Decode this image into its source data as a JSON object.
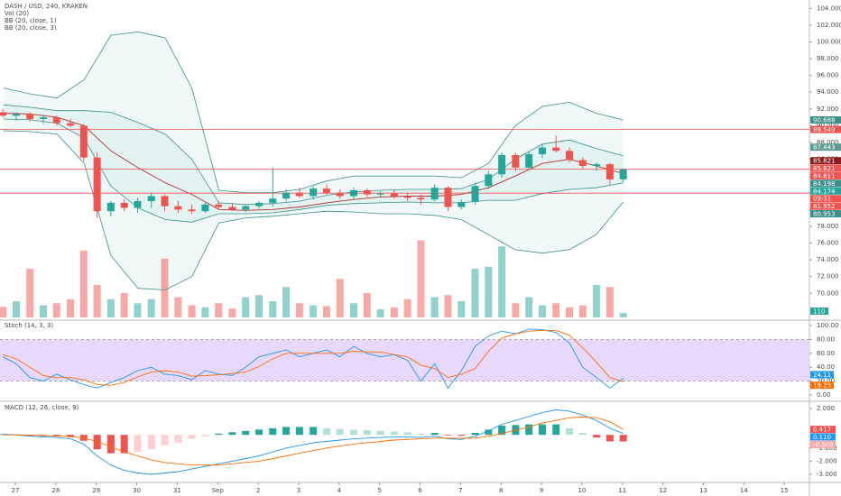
{
  "chart_data": [
    {
      "type": "candlestick",
      "title": "DASH / USD, 240, KRAKEN",
      "indicators": [
        "Vol (20)",
        "BB (20, close, 1)",
        "BB (20, close, 3)"
      ],
      "x": [
        -0.31,
        0.02,
        0.36,
        0.69,
        1.02,
        1.36,
        1.69,
        2.02,
        2.36,
        2.69,
        3.02,
        3.36,
        3.69,
        4.02,
        4.36,
        4.69,
        5.02,
        5.36,
        5.69,
        6.02,
        6.36,
        6.69,
        7.02,
        7.36,
        7.69,
        8.02,
        8.36,
        8.69,
        9.02,
        9.36,
        9.69,
        10.02,
        10.36,
        10.69,
        11.02,
        11.36,
        11.69,
        12.02,
        12.36,
        12.69,
        13.02,
        13.36,
        13.69,
        14.02,
        14.36,
        14.69,
        15.02
      ],
      "open": [
        91.6,
        91.2,
        91.4,
        90.8,
        91.0,
        90.3,
        90.0,
        86.2,
        79.8,
        80.8,
        80.2,
        81.0,
        81.6,
        80.4,
        80.0,
        79.8,
        80.6,
        80.3,
        80.0,
        80.4,
        80.8,
        81.3,
        82.0,
        81.6,
        82.5,
        82.0,
        81.6,
        82.3,
        81.8,
        81.9,
        81.6,
        81.4,
        81.2,
        82.6,
        80.3,
        80.9,
        82.8,
        84.2,
        86.5,
        85.0,
        86.6,
        87.4,
        87.0,
        85.9,
        85.2,
        85.4,
        83.6
      ],
      "high": [
        92.0,
        91.6,
        91.6,
        91.3,
        91.2,
        90.8,
        90.2,
        86.8,
        81.0,
        81.2,
        81.4,
        82.0,
        81.8,
        81.0,
        80.6,
        80.8,
        81.0,
        80.8,
        80.6,
        81.0,
        85.0,
        82.4,
        82.6,
        82.8,
        83.0,
        82.4,
        82.6,
        82.5,
        82.2,
        82.3,
        82.0,
        81.8,
        83.0,
        82.8,
        81.2,
        83.2,
        84.6,
        86.8,
        86.8,
        86.9,
        87.8,
        88.8,
        87.4,
        86.2,
        85.6,
        85.6,
        84.9
      ],
      "low": [
        91.0,
        90.6,
        90.5,
        90.2,
        90.0,
        89.8,
        85.8,
        79.0,
        79.2,
        79.8,
        79.6,
        80.2,
        79.8,
        79.6,
        79.5,
        79.6,
        80.0,
        79.8,
        79.7,
        80.1,
        80.4,
        81.0,
        81.4,
        81.2,
        81.8,
        81.3,
        81.3,
        81.5,
        81.4,
        81.3,
        81.0,
        80.6,
        81.0,
        79.8,
        80.0,
        80.6,
        82.4,
        83.8,
        84.6,
        84.8,
        86.2,
        86.8,
        85.6,
        84.9,
        84.6,
        83.0,
        83.3
      ],
      "close": [
        91.2,
        91.4,
        90.8,
        91.0,
        90.3,
        90.0,
        86.2,
        79.8,
        80.8,
        80.2,
        81.0,
        81.6,
        80.4,
        80.0,
        79.8,
        80.6,
        80.3,
        80.0,
        80.4,
        80.8,
        81.3,
        82.0,
        81.6,
        82.5,
        82.0,
        81.6,
        82.3,
        81.8,
        81.9,
        81.6,
        81.4,
        81.2,
        82.6,
        80.3,
        80.9,
        82.8,
        84.2,
        86.5,
        85.0,
        86.6,
        87.4,
        87.0,
        85.9,
        85.2,
        85.4,
        83.6,
        84.8
      ],
      "up_color": "#26a69a",
      "down_color": "#ef5350",
      "volume": [
        260,
        400,
        1200,
        300,
        350,
        450,
        1650,
        800,
        450,
        600,
        350,
        450,
        1450,
        500,
        300,
        250,
        350,
        220,
        500,
        550,
        400,
        750,
        350,
        300,
        280,
        950,
        350,
        600,
        200,
        250,
        450,
        1900,
        500,
        550,
        400,
        1200,
        1250,
        1750,
        350,
        500,
        300,
        350,
        250,
        300,
        800,
        750,
        110
      ],
      "volume_ylim": [
        0,
        4000
      ],
      "bands": {
        "x": [
          -0.3,
          0.37,
          1.03,
          1.7,
          2.36,
          3.03,
          3.7,
          4.36,
          5.03,
          5.69,
          6.36,
          7.03,
          7.69,
          8.36,
          9.02,
          9.69,
          10.36,
          11.02,
          11.69,
          12.35,
          13.02,
          13.69,
          14.35,
          15.02
        ],
        "basis": [
          91.5,
          91.4,
          91.0,
          90.0,
          87.0,
          85.0,
          83.2,
          81.8,
          80.0,
          79.9,
          80.0,
          80.3,
          80.8,
          81.2,
          81.5,
          81.6,
          81.6,
          81.8,
          82.6,
          84.0,
          85.5,
          86.0,
          85.2,
          84.3
        ],
        "upper1": [
          92.5,
          92.2,
          91.8,
          91.8,
          91.6,
          90.4,
          89.0,
          86.0,
          80.8,
          80.6,
          80.7,
          81.0,
          81.7,
          82.1,
          82.3,
          82.4,
          82.4,
          82.5,
          83.6,
          86.0,
          87.8,
          88.3,
          87.3,
          86.4
        ],
        "lower1": [
          90.8,
          90.7,
          90.3,
          88.5,
          82.8,
          80.2,
          78.8,
          78.5,
          79.5,
          79.5,
          79.6,
          80.0,
          80.5,
          80.7,
          80.8,
          80.9,
          80.8,
          80.8,
          81.1,
          81.1,
          81.9,
          82.4,
          82.6,
          83.2
        ],
        "upper3": [
          94.5,
          93.8,
          93.3,
          95.5,
          100.8,
          101.2,
          100.5,
          94.5,
          82.3,
          82.0,
          82.0,
          82.4,
          83.4,
          84.0,
          84.0,
          84.0,
          84.0,
          83.8,
          85.5,
          90.0,
          92.3,
          92.8,
          91.5,
          90.7
        ],
        "lower3": [
          89.4,
          89.3,
          89.0,
          85.5,
          74.5,
          70.6,
          70.4,
          72.0,
          78.4,
          79.0,
          79.2,
          79.5,
          79.8,
          79.7,
          79.5,
          79.5,
          79.3,
          78.8,
          77.0,
          75.2,
          74.8,
          75.2,
          77.0,
          80.9
        ],
        "color": "#3d8f8b",
        "basis_color": "#b2302e"
      },
      "price_tags": [
        {
          "value": 90.688,
          "color": "#3d8f8b"
        },
        {
          "value": 89.549,
          "color": "#ef5350",
          "line": true
        },
        {
          "value": 87.443,
          "color": "#5d9a97"
        },
        {
          "value": 85.821,
          "color": "#8b1c1c"
        },
        {
          "value": 85.821,
          "color": "#ef5350"
        },
        {
          "value": 84.811,
          "color": "#ef5350",
          "line": true
        },
        {
          "value": 84.198,
          "color": "#3d8f8b"
        },
        {
          "value": 84.174,
          "color": "#26a69a"
        },
        {
          "label": "09:31",
          "color": "#ef5350"
        },
        {
          "value": 81.952,
          "color": "#ef5350",
          "line": true
        },
        {
          "value": 80.953,
          "color": "#3d8f8b"
        }
      ],
      "xlim": [
        -0.38,
        19.62
      ],
      "ylim": [
        66.8,
        105
      ],
      "yticks": [
        {
          "value": 70,
          "label": "70.000"
        },
        {
          "value": 72,
          "label": "72.000"
        },
        {
          "value": 74,
          "label": "74.000"
        },
        {
          "value": 76,
          "label": "76.000"
        },
        {
          "value": 78,
          "label": "78.000"
        },
        {
          "value": 80,
          "label": "80.000"
        },
        {
          "value": 82,
          "label": "82.000"
        },
        {
          "value": 84,
          "label": "84.000"
        },
        {
          "value": 86,
          "label": "86.000"
        },
        {
          "value": 88,
          "label": "88.000"
        },
        {
          "value": 90,
          "label": "90.000"
        },
        {
          "value": 92,
          "label": "92.000"
        },
        {
          "value": 94,
          "label": "94.000"
        },
        {
          "value": 96,
          "label": "96.000"
        },
        {
          "value": 98,
          "label": "98.000"
        },
        {
          "value": 100,
          "label": "100.000"
        },
        {
          "value": 102,
          "label": "102.000"
        },
        {
          "value": 104,
          "label": "104.000"
        }
      ]
    },
    {
      "type": "line",
      "title": "Stoch (14, 3, 3)",
      "series": [
        {
          "color": "#2196f3",
          "values": [
            55,
            45,
            25,
            20,
            30,
            22,
            15,
            10,
            18,
            25,
            35,
            40,
            30,
            28,
            22,
            35,
            30,
            28,
            40,
            55,
            60,
            65,
            55,
            60,
            65,
            55,
            70,
            60,
            55,
            58,
            50,
            20,
            45,
            10,
            35,
            70,
            85,
            92,
            88,
            95,
            94,
            90,
            75,
            40,
            25,
            10,
            24.11
          ]
        },
        {
          "color": "#ff6d00",
          "values": [
            58,
            52,
            40,
            28,
            25,
            25,
            22,
            15,
            14,
            18,
            26,
            33,
            35,
            33,
            27,
            28,
            29,
            31,
            33,
            41,
            52,
            60,
            60,
            60,
            60,
            60,
            63,
            62,
            62,
            58,
            55,
            43,
            38,
            25,
            30,
            38,
            63,
            82,
            88,
            92,
            93,
            93,
            86,
            68,
            47,
            25,
            19.25
          ]
        }
      ],
      "band": [
        20,
        80
      ],
      "band_color": "#e8d9fc",
      "ylim": [
        -9.1,
        107.8
      ],
      "yticks": [
        {
          "value": 0,
          "label": "0.00"
        },
        {
          "value": 20,
          "label": "20.00"
        },
        {
          "value": 40,
          "label": "40.00"
        },
        {
          "value": 60,
          "label": "60.00"
        },
        {
          "value": 80,
          "label": "80.00"
        },
        {
          "value": 100,
          "label": "100.00"
        }
      ]
    },
    {
      "type": "macd",
      "title": "MACD (12, 26, close, 9)",
      "series": [
        {
          "color": "#2196f3",
          "values": [
            0.05,
            0,
            -0.1,
            -0.15,
            -0.2,
            -0.3,
            -0.7,
            -1.6,
            -2.3,
            -2.7,
            -2.9,
            -3.0,
            -2.9,
            -2.8,
            -2.6,
            -2.4,
            -2.2,
            -2.0,
            -1.8,
            -1.6,
            -1.3,
            -1.0,
            -0.8,
            -0.6,
            -0.5,
            -0.4,
            -0.3,
            -0.25,
            -0.2,
            -0.15,
            -0.15,
            -0.2,
            -0.1,
            -0.3,
            -0.35,
            -0.1,
            0.3,
            0.8,
            1.1,
            1.4,
            1.7,
            1.9,
            1.8,
            1.5,
            1.1,
            0.5,
            0.11
          ]
        },
        {
          "color": "#ff6d00",
          "values": [
            0,
            0,
            -0.02,
            -0.05,
            -0.08,
            -0.12,
            -0.25,
            -0.5,
            -0.9,
            -1.3,
            -1.6,
            -1.9,
            -2.1,
            -2.2,
            -2.3,
            -2.3,
            -2.3,
            -2.2,
            -2.1,
            -2.0,
            -1.8,
            -1.6,
            -1.4,
            -1.2,
            -1.0,
            -0.85,
            -0.7,
            -0.6,
            -0.5,
            -0.4,
            -0.35,
            -0.3,
            -0.25,
            -0.25,
            -0.27,
            -0.25,
            -0.1,
            0.1,
            0.35,
            0.6,
            0.9,
            1.1,
            1.3,
            1.35,
            1.3,
            1.0,
            0.417
          ]
        }
      ],
      "histogram": [
        0.05,
        0,
        -0.08,
        -0.1,
        -0.12,
        -0.18,
        -0.45,
        -1.1,
        -1.4,
        -1.4,
        -1.3,
        -1.1,
        -0.8,
        -0.6,
        -0.3,
        -0.1,
        0.1,
        0.2,
        0.3,
        0.4,
        0.5,
        0.6,
        0.6,
        0.6,
        0.5,
        0.45,
        0.4,
        0.35,
        0.3,
        0.25,
        0.2,
        0.1,
        0.15,
        -0.05,
        -0.08,
        0.15,
        0.4,
        0.7,
        0.75,
        0.8,
        0.8,
        0.8,
        0.5,
        0.15,
        -0.2,
        -0.5,
        -0.505
      ],
      "tags": [
        {
          "value": 0.417,
          "label": "0.417",
          "color": "#ef5350"
        },
        {
          "value": 0.11,
          "label": "0.110",
          "color": "#2196f3"
        },
        {
          "value": -0.505,
          "label": "-0.505",
          "color": "#f7a9a8"
        }
      ],
      "ylim": [
        -3.62,
        2.55
      ],
      "yticks": [
        {
          "value": 2,
          "label": "2.000"
        },
        {
          "value": -1,
          "label": "-1.000"
        },
        {
          "value": -2,
          "label": "-2.000"
        },
        {
          "value": -3,
          "label": "-3.000"
        }
      ],
      "xlim": [
        -0.38,
        19.62
      ],
      "xticks": [
        {
          "value": 0,
          "label": "27"
        },
        {
          "value": 1,
          "label": "28"
        },
        {
          "value": 2,
          "label": "29"
        },
        {
          "value": 3,
          "label": "30"
        },
        {
          "value": 4,
          "label": "31"
        },
        {
          "value": 5,
          "label": "Sep"
        },
        {
          "value": 6,
          "label": "2"
        },
        {
          "value": 7,
          "label": "3"
        },
        {
          "value": 8,
          "label": "4"
        },
        {
          "value": 9,
          "label": "5"
        },
        {
          "value": 10,
          "label": "6"
        },
        {
          "value": 11,
          "label": "7"
        },
        {
          "value": 12,
          "label": "8"
        },
        {
          "value": 13,
          "label": "9"
        },
        {
          "value": 14,
          "label": "10"
        },
        {
          "value": 15,
          "label": "11"
        },
        {
          "value": 16,
          "label": "12"
        },
        {
          "value": 17,
          "label": "13"
        },
        {
          "value": 18,
          "label": "14"
        },
        {
          "value": 19,
          "label": "15"
        }
      ]
    }
  ]
}
